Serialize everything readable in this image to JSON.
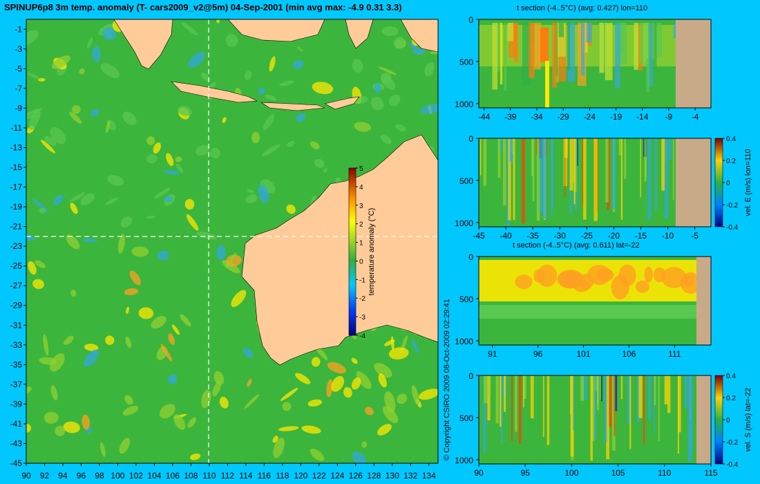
{
  "title": "SPINUP6p8 3m temp. anomaly (T- cars2009_v2@5m) 04-Sep-2001 (min avg max: -4.9 0.31 3.3)",
  "copyright": "© Copyright CSIRO 2009   08-Oct-2009 02:29:41",
  "colors": {
    "background": "#00c8ff",
    "land": "#ffcc99",
    "section_land": "#c9aa88",
    "ocean_base": "#3cb53c"
  },
  "chart_data": [
    {
      "type": "heatmap",
      "name": "map",
      "title": "SPINUP6p8 3m temp. anomaly (T- cars2009_v2@5m) 04-Sep-2001 (min avg max: -4.9 0.31 3.3)",
      "x_ticks": [
        "90",
        "92",
        "94",
        "96",
        "98",
        "100",
        "102",
        "104",
        "106",
        "108",
        "110",
        "112",
        "114",
        "116",
        "118",
        "120",
        "122",
        "124",
        "126",
        "128",
        "130",
        "132",
        "134"
      ],
      "y_ticks": [
        "-1",
        "-3",
        "-5",
        "-7",
        "-9",
        "-11",
        "-13",
        "-15",
        "-17",
        "-19",
        "-21",
        "-23",
        "-25",
        "-27",
        "-29",
        "-31",
        "-33",
        "-35",
        "-37",
        "-39",
        "-41",
        "-43",
        "-45"
      ],
      "xlim": [
        90,
        135
      ],
      "ylim": [
        -45,
        0
      ],
      "section_lon": 110,
      "section_lat": -22,
      "colorbar_label": "temperature anomaly (°C)",
      "colorbar_ticks": [
        "5",
        "4",
        "3",
        "2",
        "1",
        "0",
        "-1",
        "-2",
        "-3",
        "-4"
      ],
      "colorbar_range": [
        -4,
        5
      ]
    },
    {
      "type": "heatmap",
      "name": "t-section-lon",
      "title": "t section (-4..5°C) (avg: 0.427) lon=110",
      "x_ticks": [
        "-44",
        "-39",
        "-34",
        "-29",
        "-24",
        "-19",
        "-14",
        "-9",
        "-4"
      ],
      "y_ticks": [
        "0",
        "500",
        "1000"
      ],
      "xlim": [
        -45,
        -1
      ],
      "ylim": [
        1050,
        0
      ]
    },
    {
      "type": "heatmap",
      "name": "vel-e-section",
      "x_ticks": [
        "-45",
        "-40",
        "-35",
        "-30",
        "-25",
        "-20",
        "-15",
        "-10",
        "-5"
      ],
      "y_ticks": [
        "0",
        "500",
        "1000"
      ],
      "xlim": [
        -45,
        -2
      ],
      "ylim": [
        1050,
        0
      ],
      "colorbar_label": "vel. E (m/s) lon=110",
      "colorbar_ticks": [
        "0.4",
        "0.2",
        "0",
        "-0.2",
        "-0.4"
      ],
      "colorbar_range": [
        -0.4,
        0.4
      ]
    },
    {
      "type": "heatmap",
      "name": "t-section-lat",
      "title": "t section (-4..5°C) (avg: 0.611) lat=-22",
      "x_ticks": [
        "91",
        "96",
        "101",
        "106",
        "111"
      ],
      "y_ticks": [
        "0",
        "500",
        "1000"
      ],
      "xlim": [
        89.5,
        115
      ],
      "ylim": [
        1050,
        0
      ]
    },
    {
      "type": "heatmap",
      "name": "vel-s-section",
      "x_ticks": [
        "90",
        "95",
        "100",
        "105",
        "110",
        "115"
      ],
      "y_ticks": [
        "0",
        "500",
        "1000"
      ],
      "xlim": [
        90,
        115
      ],
      "ylim": [
        1050,
        0
      ],
      "colorbar_label": "vel. S (m/s) lat=-22",
      "colorbar_ticks": [
        "0.4",
        "0.2",
        "0",
        "-0.2",
        "-0.4"
      ],
      "colorbar_range": [
        -0.4,
        0.4
      ]
    }
  ]
}
